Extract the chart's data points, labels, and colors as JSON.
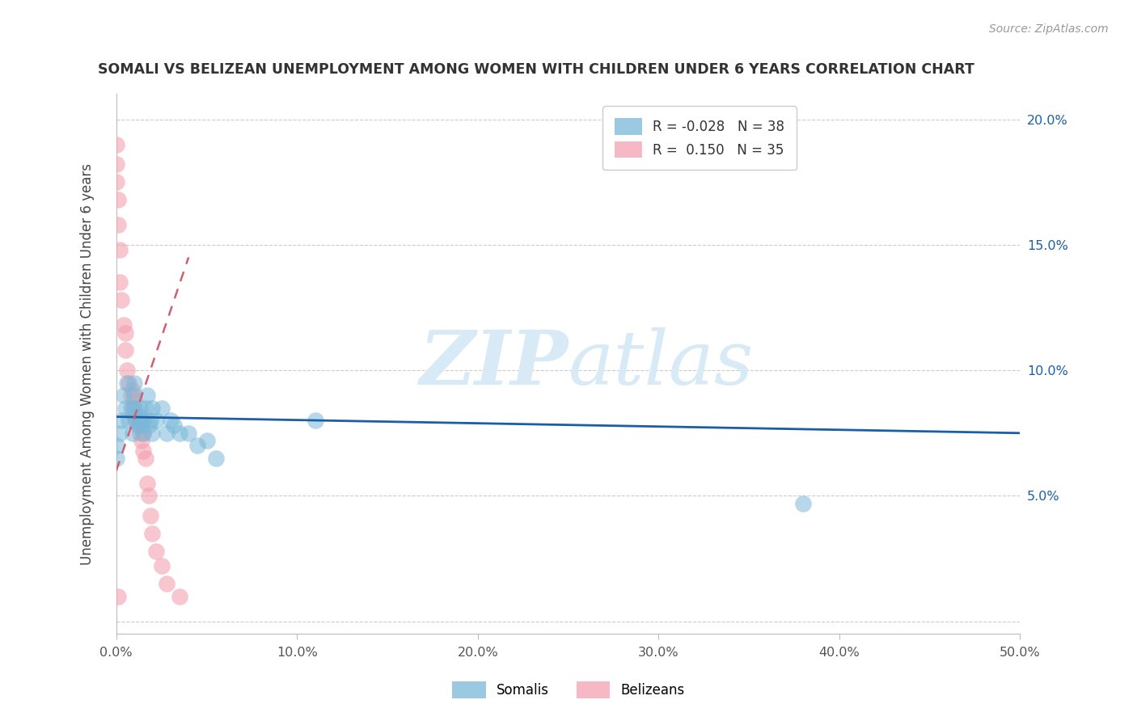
{
  "title": "SOMALI VS BELIZEAN UNEMPLOYMENT AMONG WOMEN WITH CHILDREN UNDER 6 YEARS CORRELATION CHART",
  "source": "Source: ZipAtlas.com",
  "ylabel": "Unemployment Among Women with Children Under 6 years",
  "xlim": [
    0.0,
    0.5
  ],
  "ylim": [
    -0.005,
    0.21
  ],
  "xticks": [
    0.0,
    0.1,
    0.2,
    0.3,
    0.4,
    0.5
  ],
  "xtick_labels": [
    "0.0%",
    "10.0%",
    "20.0%",
    "30.0%",
    "40.0%",
    "50.0%"
  ],
  "yticks": [
    0.0,
    0.05,
    0.1,
    0.15,
    0.2
  ],
  "ytick_labels_right": [
    "",
    "5.0%",
    "10.0%",
    "15.0%",
    "20.0%"
  ],
  "somali_color": "#7ab8d9",
  "belizean_color": "#f4a0b0",
  "somali_trend_color": "#1a5ea8",
  "belizean_trend_color": "#d06070",
  "watermark_color": "#d8eaf5",
  "background_color": "#ffffff",
  "legend_somali_label": "R = -0.028   N = 38",
  "legend_belizean_label": "R =  0.150   N = 35",
  "somali_x": [
    0.0,
    0.0,
    0.002,
    0.003,
    0.004,
    0.005,
    0.006,
    0.007,
    0.008,
    0.009,
    0.01,
    0.01,
    0.01,
    0.011,
    0.012,
    0.012,
    0.013,
    0.014,
    0.015,
    0.015,
    0.016,
    0.017,
    0.018,
    0.019,
    0.02,
    0.02,
    0.022,
    0.025,
    0.028,
    0.03,
    0.032,
    0.035,
    0.04,
    0.045,
    0.05,
    0.055,
    0.11,
    0.38
  ],
  "somali_y": [
    0.065,
    0.07,
    0.075,
    0.08,
    0.09,
    0.085,
    0.095,
    0.08,
    0.085,
    0.075,
    0.085,
    0.09,
    0.095,
    0.08,
    0.078,
    0.082,
    0.085,
    0.078,
    0.075,
    0.08,
    0.085,
    0.09,
    0.078,
    0.08,
    0.075,
    0.085,
    0.08,
    0.085,
    0.075,
    0.08,
    0.078,
    0.075,
    0.075,
    0.07,
    0.072,
    0.065,
    0.08,
    0.047
  ],
  "belizean_x": [
    0.0,
    0.0,
    0.0,
    0.001,
    0.001,
    0.002,
    0.002,
    0.003,
    0.004,
    0.005,
    0.005,
    0.006,
    0.007,
    0.008,
    0.009,
    0.009,
    0.01,
    0.01,
    0.011,
    0.012,
    0.013,
    0.013,
    0.014,
    0.015,
    0.015,
    0.016,
    0.017,
    0.018,
    0.019,
    0.02,
    0.022,
    0.025,
    0.028,
    0.035,
    0.001
  ],
  "belizean_y": [
    0.19,
    0.182,
    0.175,
    0.168,
    0.158,
    0.148,
    0.135,
    0.128,
    0.118,
    0.108,
    0.115,
    0.1,
    0.095,
    0.09,
    0.085,
    0.092,
    0.082,
    0.088,
    0.08,
    0.078,
    0.075,
    0.08,
    0.072,
    0.068,
    0.075,
    0.065,
    0.055,
    0.05,
    0.042,
    0.035,
    0.028,
    0.022,
    0.015,
    0.01,
    0.01
  ],
  "somali_trend_x": [
    0.0,
    0.5
  ],
  "somali_trend_y_start": 0.0815,
  "somali_trend_y_end": 0.075,
  "belizean_trend_x_start": 0.0,
  "belizean_trend_x_end": 0.04,
  "belizean_trend_y_start": 0.06,
  "belizean_trend_y_end": 0.145
}
